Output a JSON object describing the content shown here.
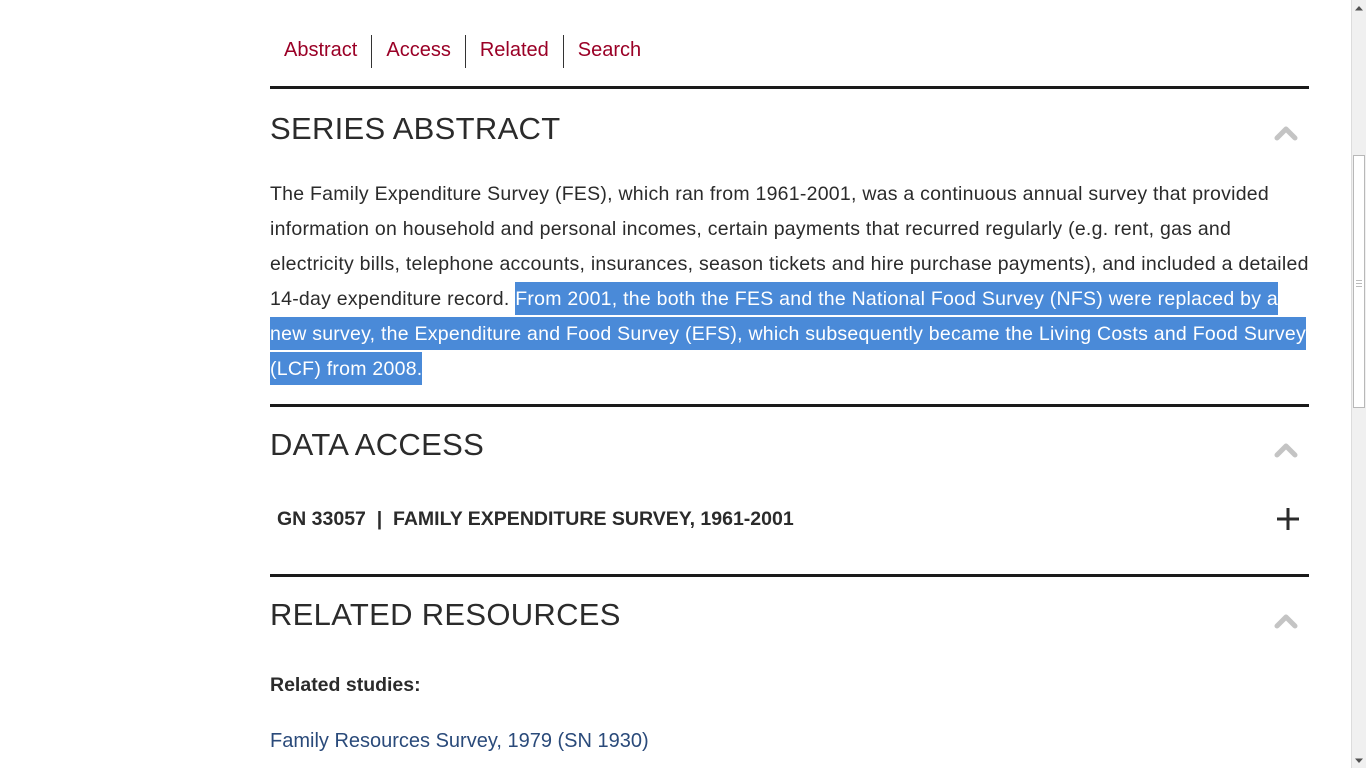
{
  "tabs": [
    {
      "label": "Abstract"
    },
    {
      "label": "Access"
    },
    {
      "label": "Related"
    },
    {
      "label": "Search"
    }
  ],
  "abstract": {
    "title": "SERIES ABSTRACT",
    "text_plain": "The Family Expenditure Survey (FES), which ran from 1961-2001, was a continuous annual survey that provided information on household and personal incomes, certain payments that recurred regularly (e.g. rent, gas and electricity bills, telephone accounts, insurances, season tickets and hire purchase payments), and included a detailed 14-day expenditure record. ",
    "text_selected": "From 2001, the both the FES and the National Food Survey (NFS) were replaced by a new survey, the Expenditure and Food Survey (EFS), which subsequently became the Living Costs and Food Survey (LCF) from 2008."
  },
  "access": {
    "title": "DATA ACCESS",
    "study_label": "GN 33057  |  FAMILY EXPENDITURE SURVEY, 1961-2001",
    "expand_icon": "plus-icon"
  },
  "related": {
    "title": "RELATED RESOURCES",
    "heading": "Related studies:",
    "links": [
      {
        "label": "Family Resources Survey, 1979 (SN 1930)"
      }
    ]
  },
  "colors": {
    "tab_link": "#9a0026",
    "selection": "#4a8ad8",
    "related_link": "#2a4a7a",
    "divider": "#1a1a1a"
  }
}
